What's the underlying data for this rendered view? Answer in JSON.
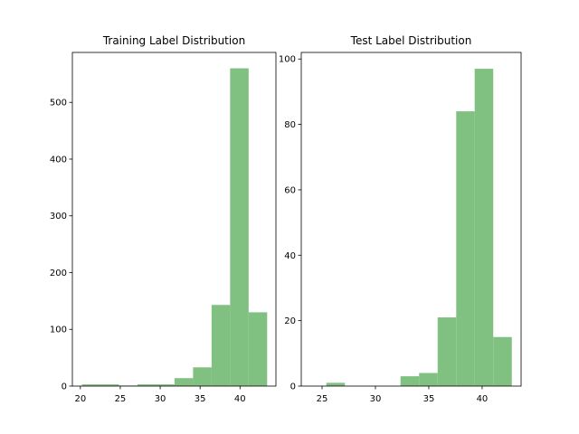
{
  "chart_data": [
    {
      "type": "histogram",
      "title": "Training Label Distribution",
      "bins": [
        20.2,
        22.52,
        24.84,
        27.16,
        29.48,
        31.8,
        34.12,
        36.44,
        38.76,
        41.08,
        43.4
      ],
      "values": [
        3,
        3,
        1,
        3,
        3,
        14,
        33,
        143,
        560,
        130
      ],
      "color": "#80c080",
      "xlim": [
        19.0,
        44.5
      ],
      "xticks": [
        20,
        25,
        30,
        35,
        40
      ],
      "ylim": [
        0,
        588
      ],
      "yticks": [
        0,
        100,
        200,
        300,
        400,
        500
      ]
    },
    {
      "type": "histogram",
      "title": "Test Label Distribution",
      "bins": [
        25.4,
        27.14,
        28.88,
        30.61,
        32.35,
        34.09,
        35.83,
        37.57,
        39.3,
        41.04,
        42.78
      ],
      "values": [
        1,
        0,
        0,
        0,
        3,
        4,
        21,
        84,
        97,
        15
      ],
      "color": "#80c080",
      "xlim": [
        23.05,
        43.65
      ],
      "xticks": [
        25,
        30,
        35,
        40
      ],
      "ylim": [
        0,
        102
      ],
      "yticks": [
        0,
        20,
        40,
        60,
        80,
        100
      ]
    }
  ]
}
